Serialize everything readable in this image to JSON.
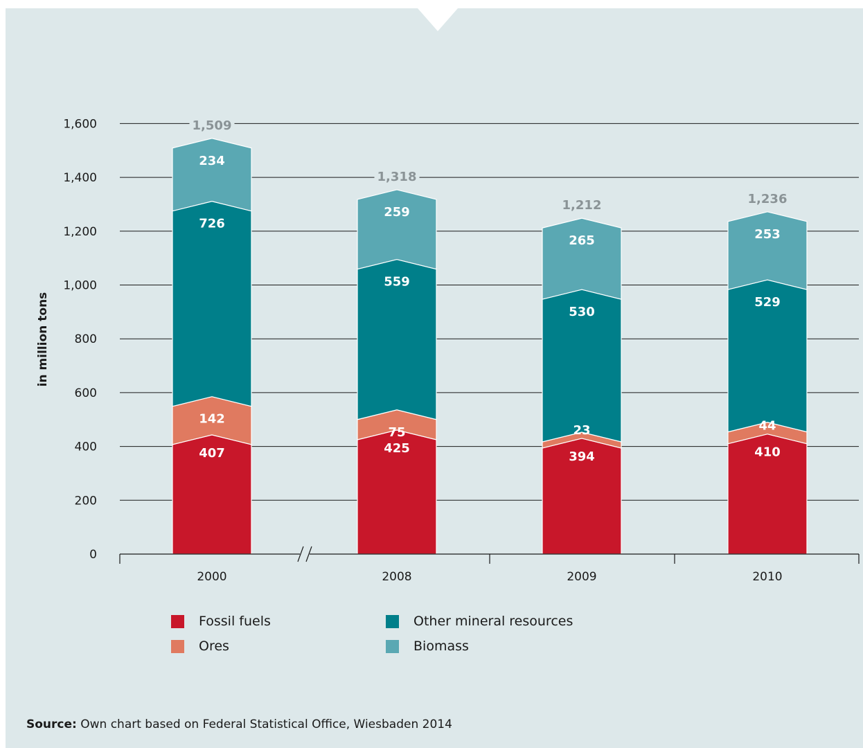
{
  "chart_data": {
    "type": "bar",
    "stacked": true,
    "categories": [
      "2000",
      "2008",
      "2009",
      "2010"
    ],
    "series": [
      {
        "name": "Fossil fuels",
        "color": "#c8172a",
        "values": [
          407,
          425,
          394,
          410
        ]
      },
      {
        "name": "Ores",
        "color": "#e07a60",
        "values": [
          142,
          75,
          23,
          44
        ]
      },
      {
        "name": "Other mineral resources",
        "color": "#007f8a",
        "values": [
          726,
          559,
          530,
          529
        ]
      },
      {
        "name": "Biomass",
        "color": "#5aa8b3",
        "values": [
          234,
          259,
          265,
          253
        ]
      }
    ],
    "totals": [
      "1,509",
      "1,318",
      "1,212",
      "1,236"
    ],
    "segment_labels": [
      [
        "407",
        "425",
        "394",
        "410"
      ],
      [
        "142",
        "75",
        "23",
        "44"
      ],
      [
        "726",
        "559",
        "530",
        "529"
      ],
      [
        "234",
        "259",
        "265",
        "253"
      ]
    ],
    "ylabel": "in million tons",
    "ylim": [
      0,
      1600
    ],
    "yticks": [
      0,
      200,
      400,
      600,
      800,
      1000,
      1200,
      1400,
      1600
    ],
    "ytick_labels": [
      "0",
      "200",
      "400",
      "600",
      "800",
      "1,000",
      "1,200",
      "1,400",
      "1,600"
    ],
    "grid": true,
    "axis_break": "between 2000 and 2008",
    "legend_position": "bottom"
  },
  "source": {
    "label": "Source:",
    "text": "Own chart based on Federal Statistical Office, Wiesbaden 2014"
  }
}
